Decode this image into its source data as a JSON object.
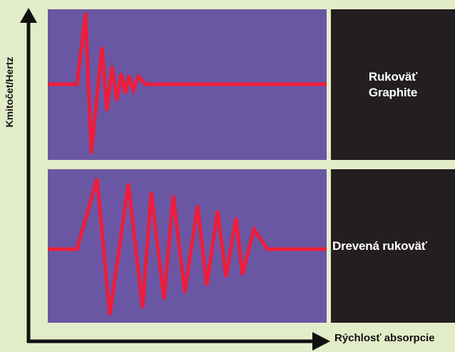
{
  "diagram": {
    "y_axis_label": "Kmitočet/Hertz",
    "x_axis_label": "Rýchlosť absorpcie",
    "panels": [
      {
        "label": "Rukoväť\nGraphite"
      },
      {
        "label": "Drevená rukoväť"
      }
    ]
  },
  "colors": {
    "background": "#e3ecc9",
    "panel": "#6a57a4",
    "label_box": "#231f20",
    "wave": "#ee1d3a",
    "axis": "#111111"
  }
}
